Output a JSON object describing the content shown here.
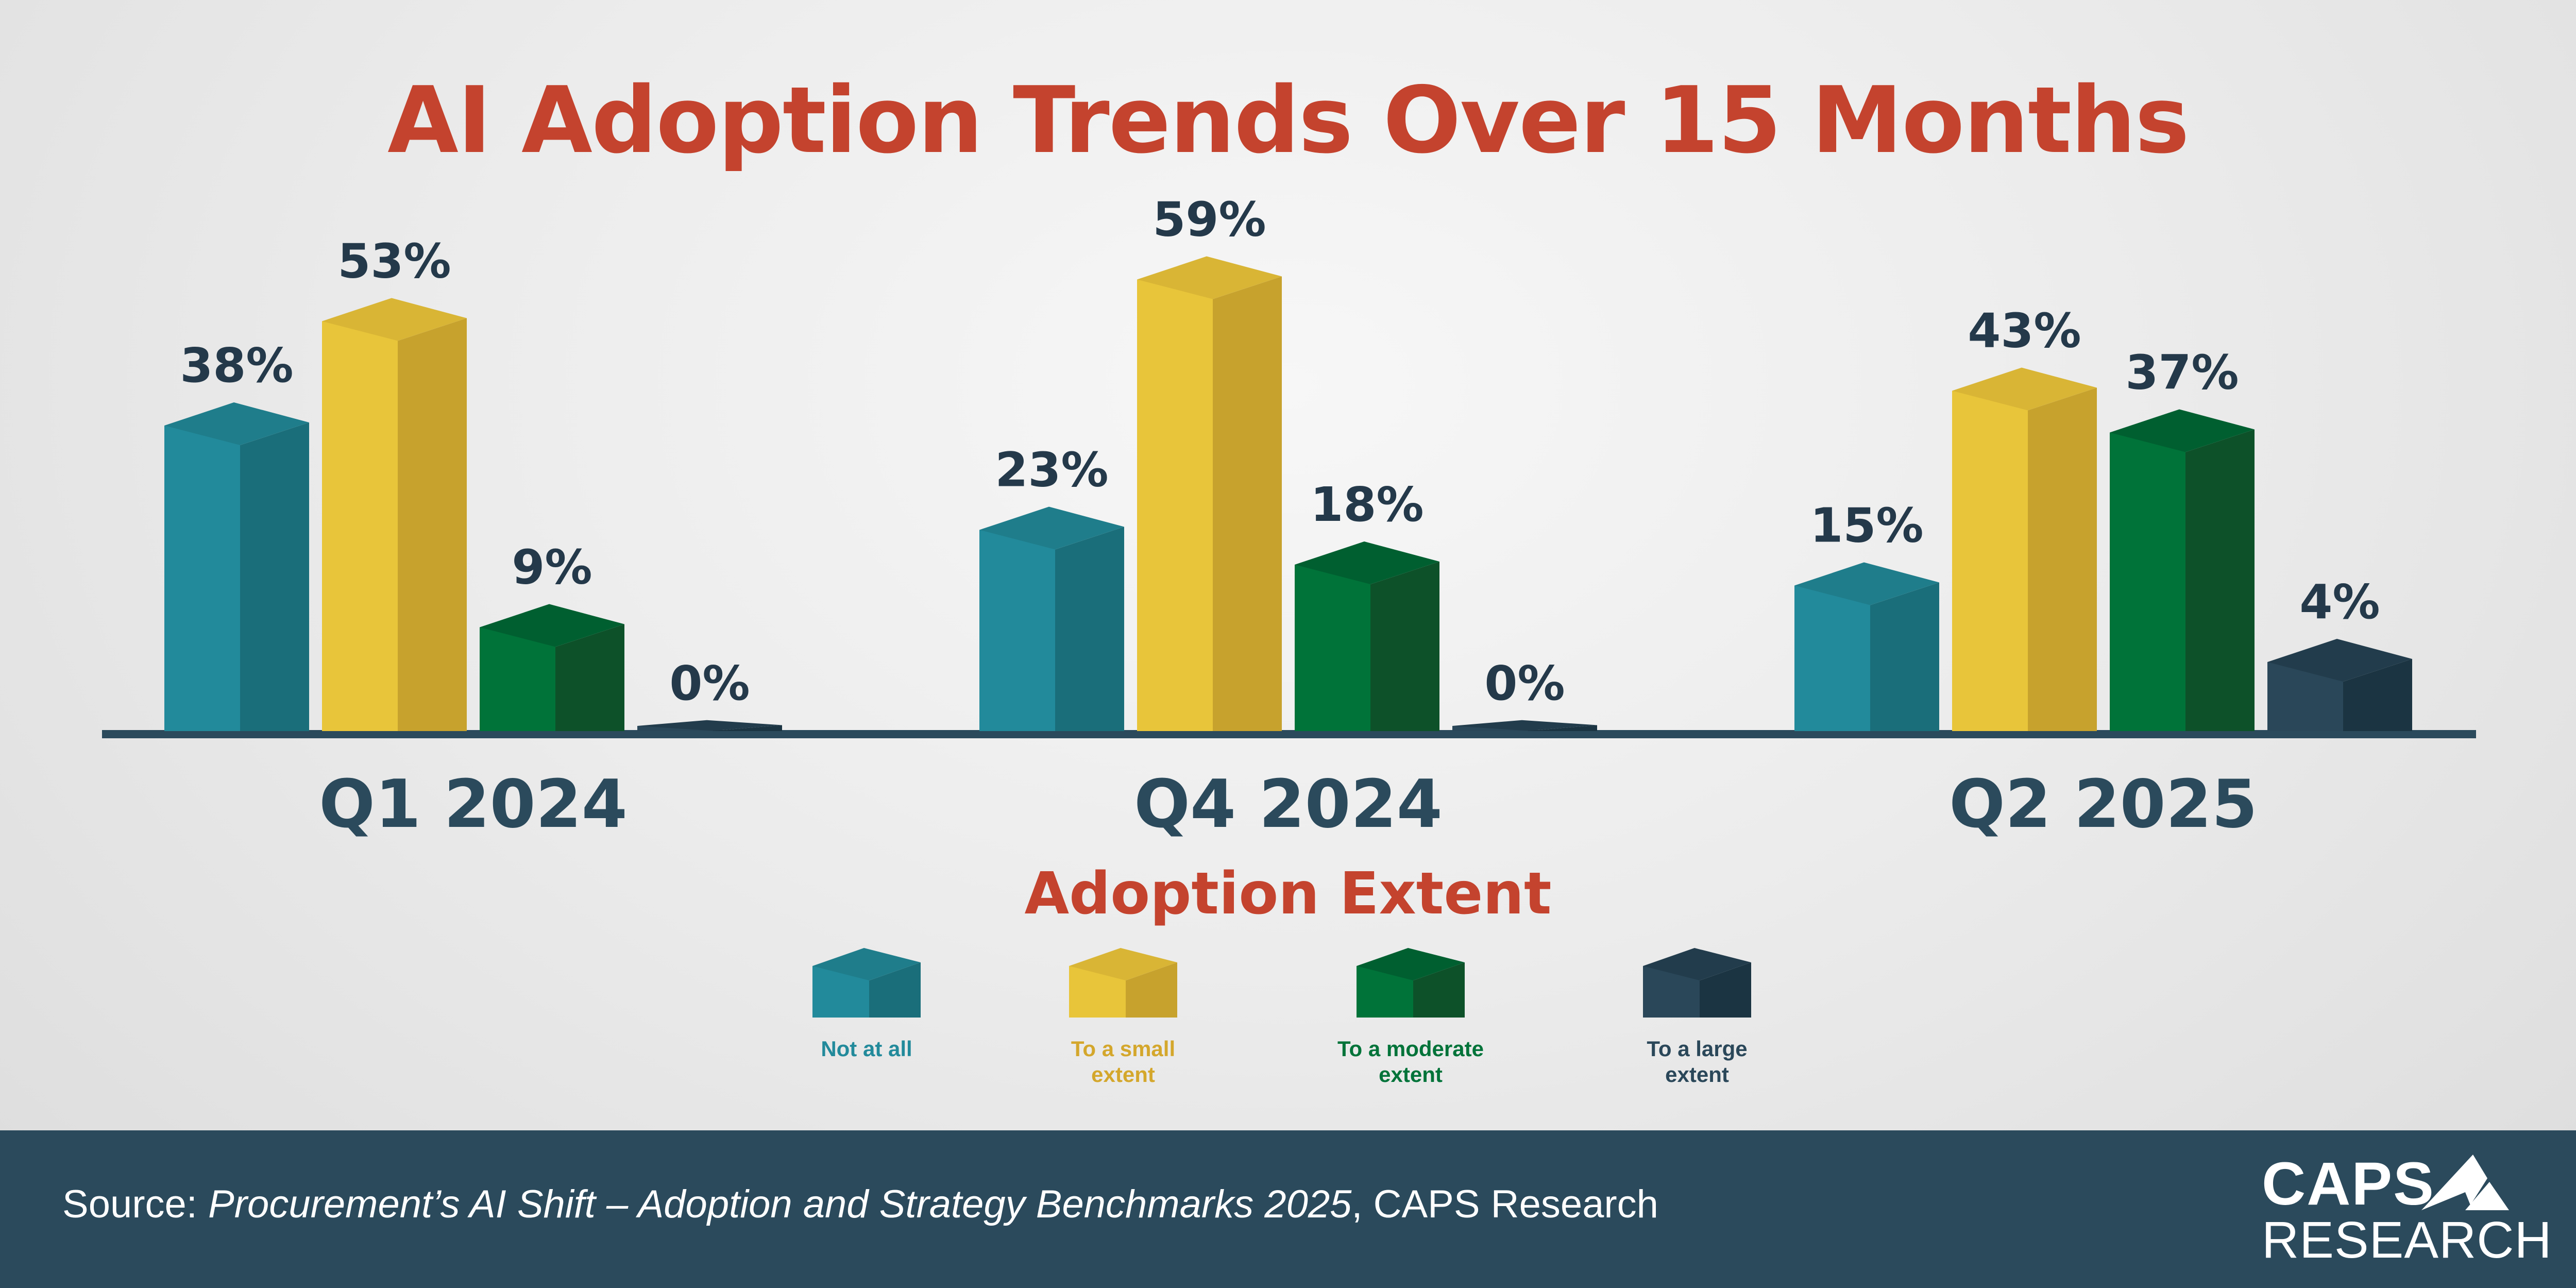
{
  "title": "AI Adoption Trends Over 15 Months",
  "legend_title": "Adoption Extent",
  "source": {
    "prefix": "Source: ",
    "title": "Procurement’s AI Shift – Adoption and Strategy Benchmarks 2025",
    "suffix": ", CAPS Research"
  },
  "logo": {
    "line1": "CAPS",
    "line2": "RESEARCH"
  },
  "chart_data": {
    "type": "bar",
    "title": "AI Adoption Trends Over 15 Months",
    "categories": [
      "Q1 2024",
      "Q4 2024",
      "Q2 2025"
    ],
    "series": [
      {
        "name": "Not at all",
        "values": [
          38,
          23,
          15
        ],
        "labels": [
          "38%",
          "23%",
          "15%"
        ],
        "color": "#228a9b",
        "side": "#1a6e7a",
        "top": "#1f7d8b"
      },
      {
        "name": "To a small extent",
        "values": [
          53,
          59,
          43
        ],
        "labels": [
          "53%",
          "59%",
          "43%"
        ],
        "color": "#e8c53a",
        "side": "#c7a22d",
        "top": "#d9b535",
        "text": "#d4a72c"
      },
      {
        "name": "To a moderate extent",
        "values": [
          9,
          18,
          37
        ],
        "labels": [
          "9%",
          "18%",
          "37%"
        ],
        "color": "#007339",
        "side": "#0d5129",
        "top": "#005f30"
      },
      {
        "name": "To a large extent",
        "values": [
          0,
          0,
          4
        ],
        "labels": [
          "0%",
          "0%",
          "4%"
        ],
        "color": "#2a4759",
        "side": "#1b3442",
        "top": "#223c4c"
      }
    ],
    "legend": {
      "title": "Adoption Extent",
      "position": "bottom",
      "items": [
        {
          "line1": "Not at all",
          "line2": ""
        },
        {
          "line1": "To a small",
          "line2": "extent"
        },
        {
          "line1": "To a moderate",
          "line2": "extent"
        },
        {
          "line1": "To a large",
          "line2": "extent"
        }
      ]
    },
    "ylim": [
      0,
      60
    ],
    "unit": "%",
    "grid": false
  }
}
